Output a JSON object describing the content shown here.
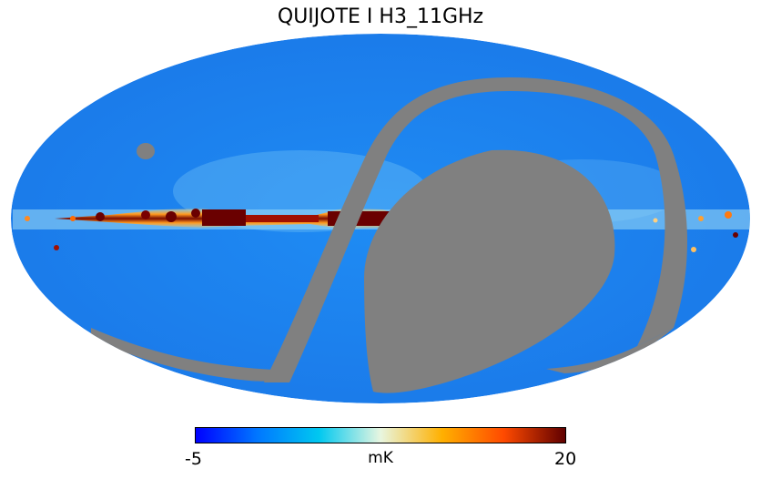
{
  "title": "QUIJOTE I H3_11GHz",
  "colorbar": {
    "min_label": "-5",
    "max_label": "20",
    "unit": "mK",
    "min": -5,
    "max": 20,
    "stops": [
      "#0000ff",
      "#0077ff",
      "#00c8f0",
      "#e8f6e0",
      "#ffb000",
      "#ff4a00",
      "#600000"
    ]
  },
  "colors": {
    "background_sky": "#2080f0",
    "masked": "#808080"
  }
}
